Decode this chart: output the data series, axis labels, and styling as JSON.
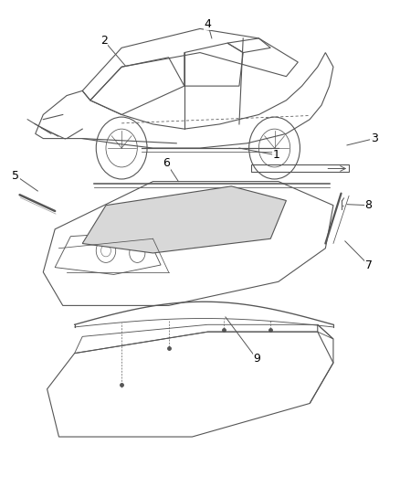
{
  "bg_color": "#ffffff",
  "line_color": "#555555",
  "label_color": "#000000",
  "label_fontsize": 9,
  "fig_width": 4.38,
  "fig_height": 5.33,
  "dpi": 100
}
